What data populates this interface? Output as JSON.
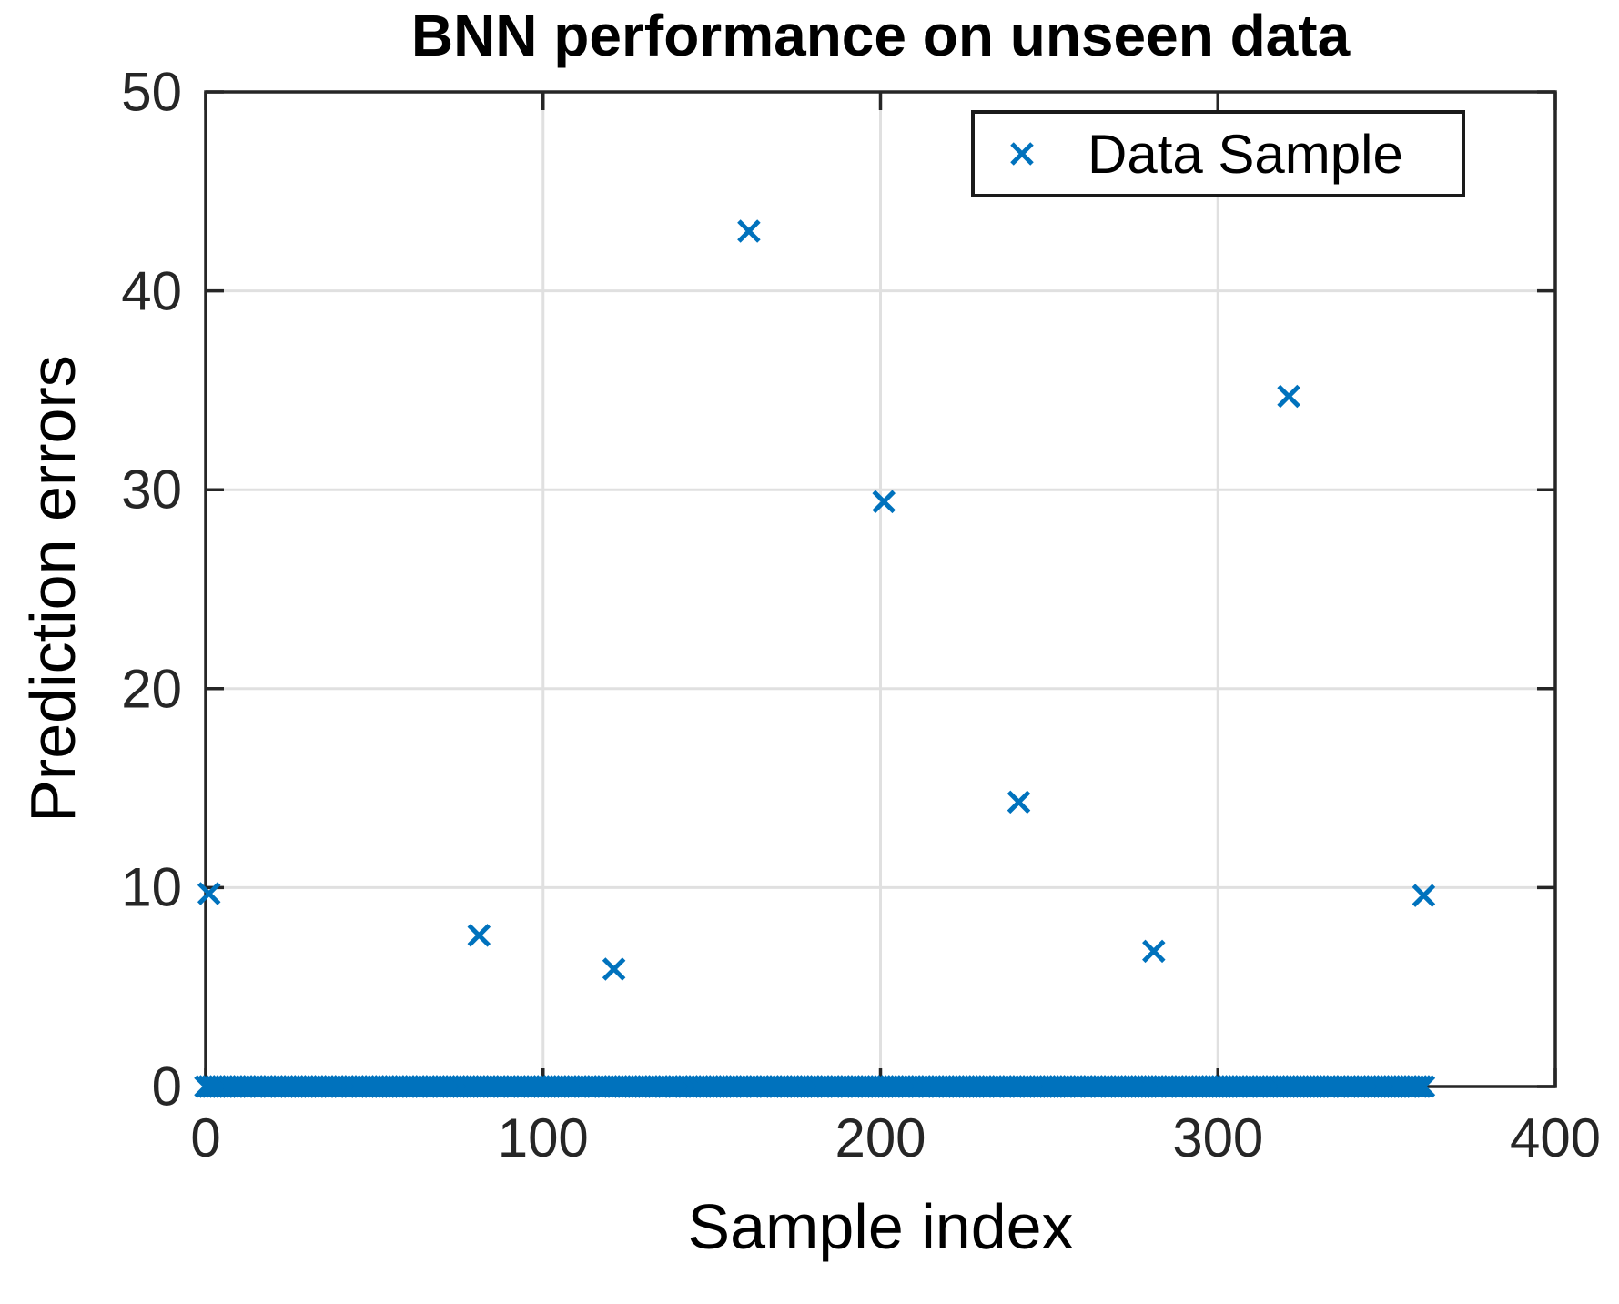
{
  "chart_data": {
    "type": "scatter",
    "title": "BNN performance on unseen data",
    "xlabel": "Sample index",
    "ylabel": "Prediction errors",
    "xlim": [
      0,
      400
    ],
    "ylim": [
      0,
      50
    ],
    "xticks": [
      0,
      100,
      200,
      300,
      400
    ],
    "yticks": [
      0,
      10,
      20,
      30,
      40,
      50
    ],
    "grid": true,
    "legend": {
      "label": "Data Sample",
      "position": "top-right"
    },
    "marker": {
      "shape": "x",
      "size": 22,
      "stroke_width": 5
    },
    "colors": {
      "marker": "#0072BD",
      "grid": "#e0e0e0",
      "axis": "#262626",
      "tick_text": "#262626",
      "label_text": "#000000"
    },
    "series": [
      {
        "name": "Data Sample",
        "outlier_points": [
          [
            1,
            9.7
          ],
          [
            81,
            7.6
          ],
          [
            121,
            5.9
          ],
          [
            161,
            43.0
          ],
          [
            201,
            29.4
          ],
          [
            241,
            14.3
          ],
          [
            281,
            6.8
          ],
          [
            321,
            34.7
          ],
          [
            361,
            9.6
          ]
        ],
        "baseline_points": {
          "x_start": 0,
          "x_end": 361,
          "step": 1,
          "y": 0
        }
      }
    ]
  }
}
